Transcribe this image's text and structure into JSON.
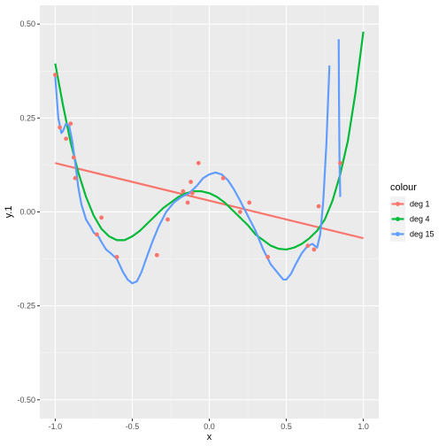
{
  "chart_data": {
    "type": "scatter",
    "xlabel": "x",
    "ylabel": "y.1",
    "xlim": [
      -1.1,
      1.1
    ],
    "ylim": [
      -0.55,
      0.55
    ],
    "x_ticks": [
      -1.0,
      -0.5,
      0.0,
      0.5,
      1.0
    ],
    "x_tick_labels": [
      "-1.0",
      "-0.5",
      "0.0",
      "0.5",
      "1.0"
    ],
    "y_ticks": [
      -0.5,
      -0.25,
      0.0,
      0.25,
      0.5
    ],
    "y_tick_labels": [
      "-0.50",
      "-0.25",
      "0.00",
      "0.25",
      "0.50"
    ],
    "grid": true,
    "legend": {
      "title": "colour",
      "position": "right",
      "entries": [
        {
          "label": "deg  1",
          "color": "#F8766D"
        },
        {
          "label": "deg  4",
          "color": "#00BA38"
        },
        {
          "label": "deg 15",
          "color": "#619CFF"
        }
      ]
    },
    "points": {
      "color": "#F8766D",
      "x": [
        -1.0,
        -0.97,
        -0.93,
        -0.9,
        -0.88,
        -0.87,
        -0.73,
        -0.7,
        -0.6,
        -0.34,
        -0.27,
        -0.17,
        -0.14,
        -0.12,
        -0.11,
        -0.07,
        0.09,
        0.2,
        0.26,
        0.38,
        0.64,
        0.68,
        0.71,
        0.85
      ],
      "y": [
        0.365,
        0.225,
        0.195,
        0.235,
        0.145,
        0.09,
        -0.06,
        -0.015,
        -0.12,
        -0.115,
        -0.02,
        0.055,
        0.025,
        0.08,
        0.05,
        0.13,
        0.09,
        0.0,
        0.025,
        -0.12,
        -0.09,
        -0.1,
        0.015,
        0.13
      ]
    },
    "series": [
      {
        "name": "deg  1",
        "color": "#F8766D",
        "x": [
          -1.0,
          1.0
        ],
        "y": [
          0.13,
          -0.07
        ]
      },
      {
        "name": "deg  4",
        "color": "#00BA38",
        "x": [
          -1.0,
          -0.95,
          -0.9,
          -0.85,
          -0.8,
          -0.75,
          -0.7,
          -0.65,
          -0.6,
          -0.55,
          -0.5,
          -0.45,
          -0.4,
          -0.35,
          -0.3,
          -0.25,
          -0.2,
          -0.15,
          -0.1,
          -0.05,
          0.0,
          0.05,
          0.1,
          0.15,
          0.2,
          0.25,
          0.3,
          0.35,
          0.4,
          0.45,
          0.5,
          0.55,
          0.6,
          0.65,
          0.7,
          0.75,
          0.8,
          0.85,
          0.9,
          0.95,
          1.0
        ],
        "y": [
          0.395,
          0.285,
          0.185,
          0.105,
          0.04,
          -0.01,
          -0.045,
          -0.065,
          -0.075,
          -0.075,
          -0.065,
          -0.05,
          -0.03,
          -0.01,
          0.01,
          0.025,
          0.04,
          0.05,
          0.055,
          0.055,
          0.05,
          0.04,
          0.025,
          0.005,
          -0.015,
          -0.035,
          -0.06,
          -0.075,
          -0.09,
          -0.098,
          -0.1,
          -0.095,
          -0.085,
          -0.07,
          -0.05,
          -0.02,
          0.03,
          0.1,
          0.19,
          0.32,
          0.48
        ]
      },
      {
        "name": "deg 15",
        "color": "#619CFF",
        "x": [
          -1.0,
          -0.98,
          -0.96,
          -0.95,
          -0.93,
          -0.91,
          -0.89,
          -0.87,
          -0.85,
          -0.83,
          -0.8,
          -0.77,
          -0.75,
          -0.72,
          -0.7,
          -0.67,
          -0.64,
          -0.6,
          -0.56,
          -0.53,
          -0.5,
          -0.47,
          -0.44,
          -0.41,
          -0.37,
          -0.33,
          -0.28,
          -0.23,
          -0.18,
          -0.13,
          -0.08,
          -0.04,
          0.0,
          0.04,
          0.08,
          0.12,
          0.16,
          0.2,
          0.25,
          0.3,
          0.35,
          0.4,
          0.45,
          0.48,
          0.5,
          0.53,
          0.56,
          0.6,
          0.64,
          0.67,
          0.7,
          0.72,
          0.74,
          0.76,
          0.78
        ],
        "y": [
          0.36,
          0.25,
          0.21,
          0.215,
          0.235,
          0.23,
          0.19,
          0.13,
          0.065,
          0.02,
          -0.02,
          -0.04,
          -0.055,
          -0.065,
          -0.08,
          -0.1,
          -0.11,
          -0.125,
          -0.16,
          -0.18,
          -0.19,
          -0.185,
          -0.16,
          -0.125,
          -0.08,
          -0.04,
          0.0,
          0.025,
          0.04,
          0.05,
          0.07,
          0.09,
          0.1,
          0.105,
          0.1,
          0.085,
          0.06,
          0.03,
          -0.01,
          -0.05,
          -0.1,
          -0.14,
          -0.165,
          -0.18,
          -0.18,
          -0.165,
          -0.14,
          -0.11,
          -0.09,
          -0.085,
          -0.095,
          -0.06,
          0.03,
          0.18,
          0.39
        ]
      },
      {
        "name": "",
        "color": "#619CFF",
        "x": [
          0.84,
          0.842,
          0.845,
          0.85
        ],
        "y": [
          0.46,
          0.3,
          0.15,
          0.04
        ]
      }
    ]
  }
}
